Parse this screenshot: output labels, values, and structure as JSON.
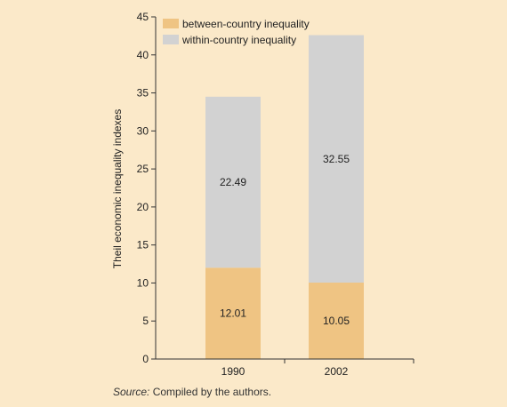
{
  "chart_data": {
    "type": "bar",
    "stacked": true,
    "categories": [
      "1990",
      "2002"
    ],
    "series": [
      {
        "name": "between-country inequality",
        "values": [
          12.01,
          10.05
        ],
        "color": "#efc483"
      },
      {
        "name": "within-country inequality",
        "values": [
          22.49,
          32.55
        ],
        "color": "#d2d2d2"
      }
    ],
    "ylabel": "Theil economic inequality indexes",
    "xlabel": "",
    "ylim": [
      0,
      45
    ],
    "yticks": [
      0,
      5,
      10,
      15,
      20,
      25,
      30,
      35,
      40,
      45
    ],
    "legend_position": "top-left",
    "grid": false
  },
  "source": {
    "label": "Source:",
    "text": "Compiled by the authors."
  },
  "colors": {
    "background": "#fbe9c9",
    "axis": "#333333"
  }
}
